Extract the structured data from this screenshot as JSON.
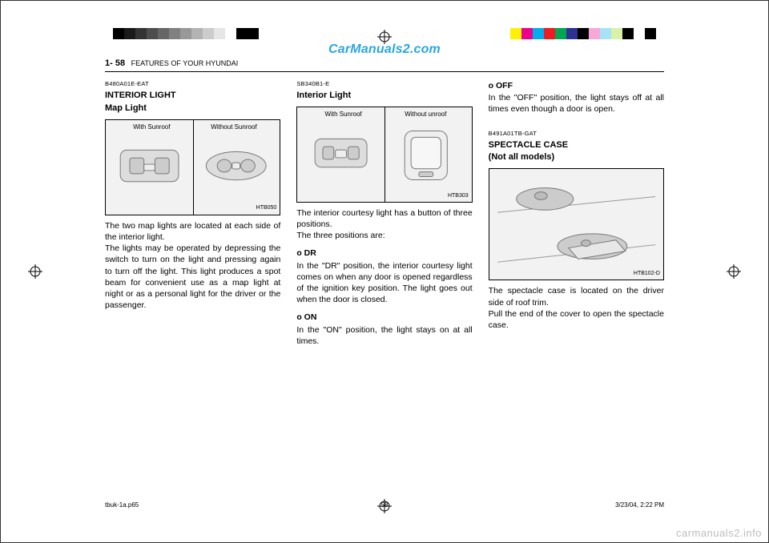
{
  "watermark": {
    "top_text": "CarManuals2.com",
    "top_color": "#2aa6e0",
    "top_fontsize": 16,
    "bottom_text": "carmanuals2.info",
    "bottom_color": "#bdbdbd",
    "bottom_fontsize": 13
  },
  "regbars": {
    "left_swatches": [
      "#000000",
      "#1a1a1a",
      "#333333",
      "#4d4d4d",
      "#666666",
      "#808080",
      "#999999",
      "#b3b3b3",
      "#cccccc",
      "#e6e6e6",
      "#ffffff",
      "#000000",
      "#000000"
    ],
    "right_swatches": [
      "#fff200",
      "#ec008c",
      "#00aeef",
      "#ed1c24",
      "#00a651",
      "#2e3192",
      "#000000",
      "#f7a8d8",
      "#a6e3f7",
      "#d9f2a8",
      "#000000",
      "#ffffff",
      "#000000"
    ]
  },
  "page_header": {
    "page_number": "1- 58",
    "section": "FEATURES OF YOUR HYUNDAI"
  },
  "col1": {
    "code": "B480A01E-EAT",
    "heading": "INTERIOR  LIGHT",
    "subheading": "Map Light",
    "illus": {
      "left_caption": "With Sunroof",
      "right_caption": "Without Sunroof",
      "figno": "HTB050",
      "bg": "#f2f2f2",
      "height": 120
    },
    "body": "The two map lights are located at each side of the interior light.\nThe lights may be operated by depressing the switch to turn on the light and pressing again to turn off the light. This light produces a spot beam for convenient use as a map light at night or as a personal light for the driver or the passenger."
  },
  "col2": {
    "code": "SB340B1-E",
    "heading": "Interior Light",
    "illus": {
      "left_caption": "With Sunroof",
      "right_caption": "Without unroof",
      "figno": "HTB303",
      "bg": "#f2f2f2",
      "height": 120
    },
    "intro": "The interior courtesy light has a button of three positions.\nThe three positions are:",
    "opt_dr_label": "o DR",
    "opt_dr_body": "In the \"DR\" position, the interior courtesy light comes on when any door is opened regardless of the ignition key position. The light goes out when the door is closed.",
    "opt_on_label": "o ON",
    "opt_on_body": "In the \"ON\" position,  the light stays on at all times."
  },
  "col3": {
    "opt_off_label": "o OFF",
    "opt_off_body": "In the \"OFF\" position, the light stays off at all times even though a door is open.",
    "code": "B491A01TB-GAT",
    "heading": "SPECTACLE  CASE",
    "subheading": "(Not all models)",
    "illus": {
      "figno": "HTB102-D",
      "bg": "#f2f2f2",
      "height": 140
    },
    "body": "The spectacle case is located on the driver side of roof trim.\nPull the end of the cover to open the spectacle case."
  },
  "footer": {
    "left": "tbuk-1a.p65",
    "mid": "58",
    "right": "3/23/04, 2:22 PM"
  },
  "colors": {
    "text": "#000000",
    "rule": "#000000",
    "illus_bg": "#f2f2f2",
    "page_bg": "#ffffff"
  }
}
